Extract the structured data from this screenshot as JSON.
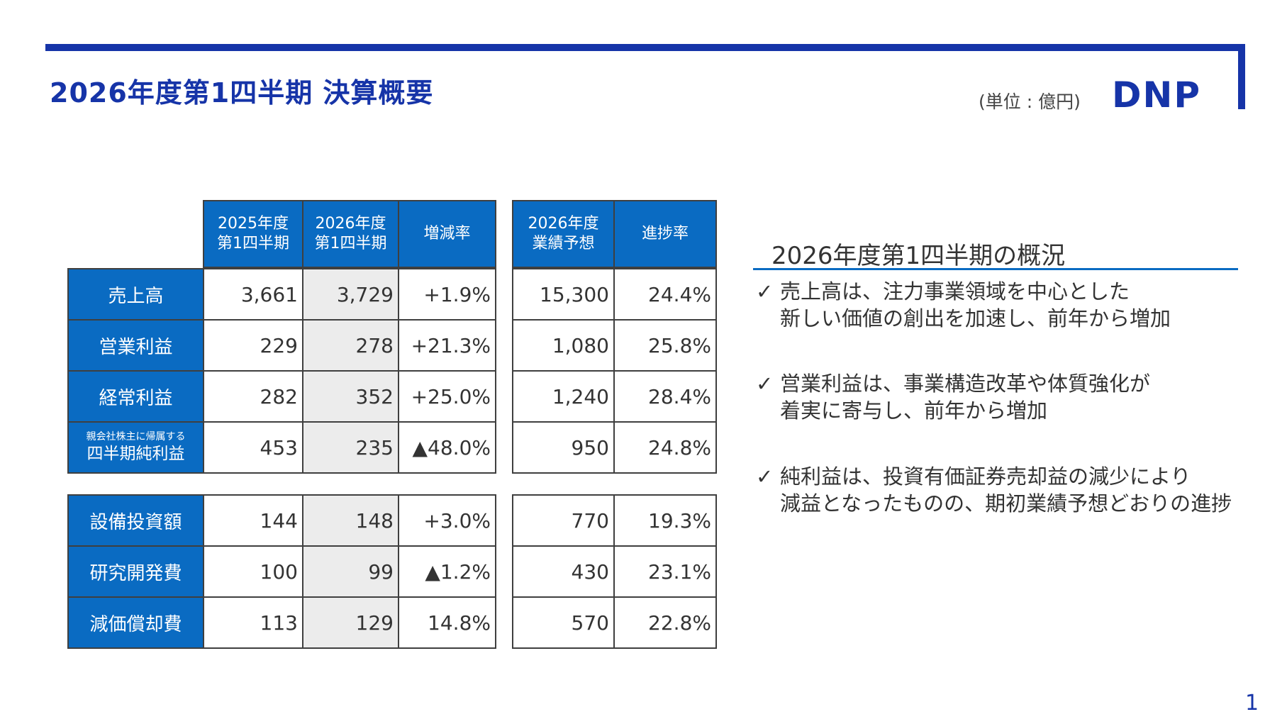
{
  "header": {
    "title": "2026年度第1四半期 決算概要",
    "unit": "(単位 : 億円)",
    "logo_text": "DNP"
  },
  "table": {
    "headers": [
      "2025年度\n第1四半期",
      "2026年度\n第1四半期",
      "増減率",
      "2026年度\n業績予想",
      "進捗率"
    ],
    "group1": [
      {
        "label": "売上高",
        "prev": "3,661",
        "curr": "3,729",
        "change": "+1.9%",
        "forecast": "15,300",
        "progress": "24.4%"
      },
      {
        "label": "営業利益",
        "prev": "229",
        "curr": "278",
        "change": "+21.3%",
        "forecast": "1,080",
        "progress": "25.8%"
      },
      {
        "label": "経常利益",
        "prev": "282",
        "curr": "352",
        "change": "+25.0%",
        "forecast": "1,240",
        "progress": "28.4%"
      },
      {
        "label_small": "親会社株主に帰属する",
        "label": "四半期純利益",
        "prev": "453",
        "curr": "235",
        "change": "▲48.0%",
        "forecast": "950",
        "progress": "24.8%"
      }
    ],
    "group2": [
      {
        "label": "設備投資額",
        "prev": "144",
        "curr": "148",
        "change": "+3.0%",
        "forecast": "770",
        "progress": "19.3%"
      },
      {
        "label": "研究開発費",
        "prev": "100",
        "curr": "99",
        "change": "▲1.2%",
        "forecast": "430",
        "progress": "23.1%"
      },
      {
        "label": "減価償却費",
        "prev": "113",
        "curr": "129",
        "change": "14.8%",
        "forecast": "570",
        "progress": "22.8%"
      }
    ]
  },
  "overview": {
    "title": "2026年度第1四半期の概況",
    "check": "✓",
    "bullets": [
      "売上高は、注力事業領域を中心とした\n新しい価値の創出を加速し、前年から増加",
      "営業利益は、事業構造改革や体質強化が\n着実に寄与し、前年から増加",
      "純利益は、投資有価証券売却益の減少により\n減益となったものの、期初業績予想どおりの進捗"
    ]
  },
  "page_number": "1",
  "colors": {
    "brand": "#1634a8",
    "header_fill": "#0a6bc2",
    "shade": "#ececec"
  }
}
